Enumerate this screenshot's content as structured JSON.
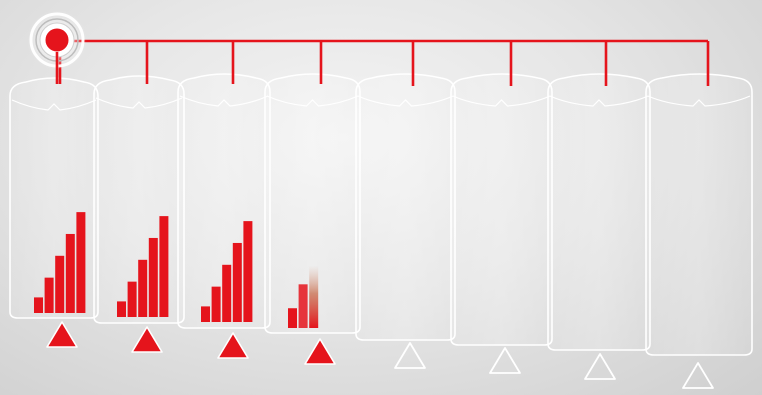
{
  "colors": {
    "accent": "#e5141c",
    "outline": "#ffffff",
    "background": "#e6e6e6"
  },
  "icons": {
    "source": "radio-signal-icon",
    "active_marker": "filled-triangle-icon",
    "inactive_marker": "outline-triangle-icon"
  },
  "cells": [
    {
      "active": true,
      "fill_bars": [
        0.15,
        0.34,
        0.55,
        0.76,
        0.97
      ]
    },
    {
      "active": true,
      "fill_bars": [
        0.15,
        0.34,
        0.55,
        0.76,
        0.97
      ]
    },
    {
      "active": true,
      "fill_bars": [
        0.15,
        0.34,
        0.55,
        0.76,
        0.97
      ]
    },
    {
      "active": true,
      "fill_bars": [
        0.19,
        0.42,
        0.6
      ],
      "fading": true
    },
    {
      "active": false,
      "fill_bars": []
    },
    {
      "active": false,
      "fill_bars": []
    },
    {
      "active": false,
      "fill_bars": []
    },
    {
      "active": false,
      "fill_bars": []
    }
  ]
}
